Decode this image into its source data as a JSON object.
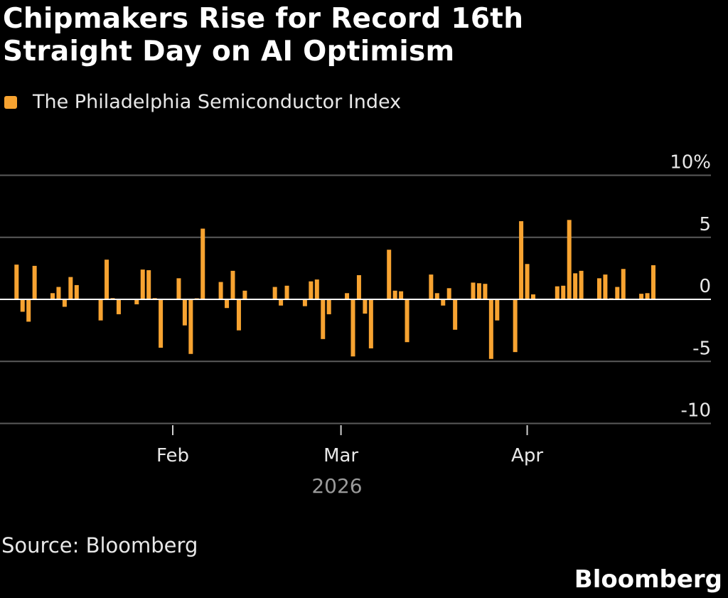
{
  "title": "Chipmakers Rise for Record 16th Straight Day on AI Optimism",
  "title_lines": [
    "Chipmakers Rise for Record 16th",
    "Straight Day on AI Optimism"
  ],
  "source": "Source: Bloomberg",
  "brand": "Bloomberg",
  "colors": {
    "bar": "#f7a331",
    "grid": "#5a5a5a",
    "zero": "#ffffff",
    "year": "#9a9a9a"
  },
  "chart_data": {
    "type": "bar",
    "title": "Chipmakers Rise for Record 16th Straight Day on AI Optimism",
    "legend": [
      "The Philadelphia Semiconductor Index"
    ],
    "legend_placement": "top-left",
    "ylabel": "%",
    "ylim": [
      -10,
      10
    ],
    "yticks": [
      {
        "v": 10,
        "label": "10%"
      },
      {
        "v": 5,
        "label": "5"
      },
      {
        "v": 0,
        "label": "0"
      },
      {
        "v": -5,
        "label": "-5"
      },
      {
        "v": -10,
        "label": "-10"
      }
    ],
    "xticks": [
      {
        "date": "2026-02-01",
        "label": "Feb"
      },
      {
        "date": "2026-03-01",
        "label": "Mar"
      },
      {
        "date": "2026-04-01",
        "label": "Apr"
      }
    ],
    "xlabel": "2026",
    "grid": true,
    "series": [
      {
        "name": "The Philadelphia Semiconductor Index",
        "dates": [
          "2026-01-06",
          "2026-01-07",
          "2026-01-08",
          "2026-01-09",
          "2026-01-12",
          "2026-01-13",
          "2026-01-14",
          "2026-01-15",
          "2026-01-16",
          "2026-01-20",
          "2026-01-21",
          "2026-01-22",
          "2026-01-23",
          "2026-01-26",
          "2026-01-27",
          "2026-01-28",
          "2026-01-29",
          "2026-01-30",
          "2026-02-02",
          "2026-02-03",
          "2026-02-04",
          "2026-02-05",
          "2026-02-06",
          "2026-02-09",
          "2026-02-10",
          "2026-02-11",
          "2026-02-12",
          "2026-02-13",
          "2026-02-18",
          "2026-02-19",
          "2026-02-20",
          "2026-02-23",
          "2026-02-24",
          "2026-02-25",
          "2026-02-26",
          "2026-02-27",
          "2026-03-02",
          "2026-03-03",
          "2026-03-04",
          "2026-03-05",
          "2026-03-06",
          "2026-03-09",
          "2026-03-10",
          "2026-03-11",
          "2026-03-12",
          "2026-03-16",
          "2026-03-17",
          "2026-03-18",
          "2026-03-19",
          "2026-03-20",
          "2026-03-23",
          "2026-03-24",
          "2026-03-25",
          "2026-03-26",
          "2026-03-27",
          "2026-03-30",
          "2026-03-31",
          "2026-04-01",
          "2026-04-02",
          "2026-04-06",
          "2026-04-07",
          "2026-04-08",
          "2026-04-09",
          "2026-04-10",
          "2026-04-13",
          "2026-04-14",
          "2026-04-15",
          "2026-04-16",
          "2026-04-17",
          "2026-04-20",
          "2026-04-21",
          "2026-04-22"
        ],
        "values": [
          2.8,
          -1.0,
          -1.8,
          2.7,
          0.5,
          1.0,
          -0.6,
          1.8,
          1.15,
          -1.7,
          3.2,
          0.1,
          -1.2,
          -0.4,
          2.4,
          2.35,
          0.1,
          -3.9,
          1.7,
          -2.1,
          -4.4,
          0.05,
          5.7,
          1.4,
          -0.7,
          2.3,
          -2.5,
          0.7,
          1.0,
          -0.5,
          1.1,
          -0.55,
          1.45,
          1.6,
          -3.2,
          -1.2,
          0.5,
          -4.6,
          1.95,
          -1.15,
          -3.95,
          4.0,
          0.7,
          0.65,
          -3.45,
          2.0,
          0.5,
          -0.5,
          0.9,
          -2.45,
          1.35,
          1.3,
          1.25,
          -4.8,
          -1.7,
          -4.25,
          6.3,
          2.85,
          0.4,
          1.05,
          1.1,
          6.4,
          2.1,
          2.3,
          1.7,
          2.0,
          0.05,
          1.0,
          2.45,
          0.45,
          0.5,
          2.75
        ]
      }
    ]
  }
}
